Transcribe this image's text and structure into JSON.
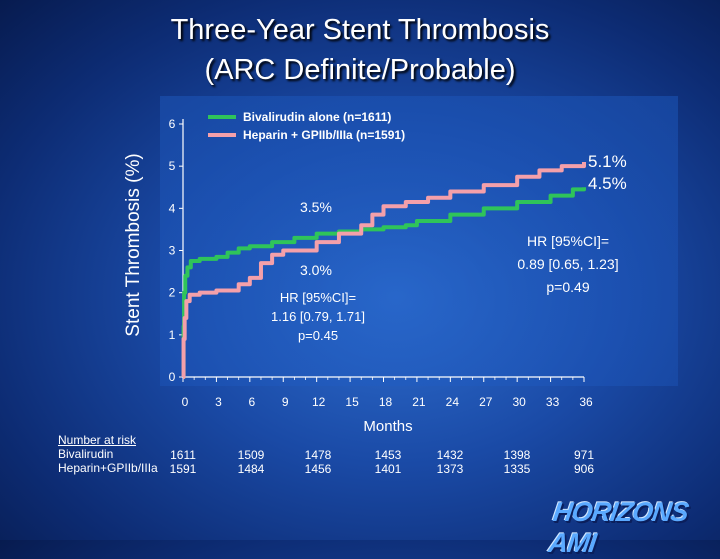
{
  "title_line1": "Three-Year Stent Thrombosis",
  "title_line2": "(ARC Definite/Probable)",
  "chart_data": {
    "type": "line",
    "ylabel": "Stent Thrombosis (%)",
    "xlabel": "Months",
    "xlim": [
      0,
      36
    ],
    "ylim": [
      0,
      6
    ],
    "x_ticks": [
      0,
      3,
      6,
      9,
      12,
      15,
      18,
      21,
      24,
      27,
      30,
      33,
      36
    ],
    "y_ticks": [
      0,
      1,
      2,
      3,
      4,
      5,
      6
    ],
    "grid": false,
    "legend": "top-center",
    "series": [
      {
        "name": "Bivalirudin alone (n=1611)",
        "color": "#2fc45a",
        "points": [
          [
            0,
            0
          ],
          [
            0.05,
            1.2
          ],
          [
            0.1,
            2.0
          ],
          [
            0.2,
            2.4
          ],
          [
            0.4,
            2.6
          ],
          [
            0.7,
            2.75
          ],
          [
            1.5,
            2.8
          ],
          [
            3,
            2.85
          ],
          [
            4,
            2.95
          ],
          [
            5,
            3.05
          ],
          [
            6,
            3.1
          ],
          [
            8,
            3.2
          ],
          [
            10,
            3.3
          ],
          [
            12,
            3.4
          ],
          [
            14,
            3.45
          ],
          [
            16,
            3.5
          ],
          [
            18,
            3.55
          ],
          [
            20,
            3.6
          ],
          [
            21,
            3.7
          ],
          [
            24,
            3.85
          ],
          [
            27,
            4.0
          ],
          [
            30,
            4.15
          ],
          [
            33,
            4.3
          ],
          [
            35,
            4.45
          ],
          [
            36,
            4.5
          ]
        ]
      },
      {
        "name": "Heparin + GPIIb/IIIa (n=1591)",
        "color": "#f4a0aa",
        "points": [
          [
            0,
            0
          ],
          [
            0.05,
            0.9
          ],
          [
            0.15,
            1.4
          ],
          [
            0.3,
            1.8
          ],
          [
            0.6,
            1.95
          ],
          [
            1.5,
            2.0
          ],
          [
            3,
            2.05
          ],
          [
            5,
            2.2
          ],
          [
            6,
            2.35
          ],
          [
            7,
            2.7
          ],
          [
            8,
            2.9
          ],
          [
            9,
            3.0
          ],
          [
            12,
            3.2
          ],
          [
            14,
            3.4
          ],
          [
            16,
            3.6
          ],
          [
            17,
            3.85
          ],
          [
            18,
            4.05
          ],
          [
            20,
            4.15
          ],
          [
            22,
            4.25
          ],
          [
            24,
            4.4
          ],
          [
            27,
            4.55
          ],
          [
            30,
            4.75
          ],
          [
            32,
            4.9
          ],
          [
            34,
            5.0
          ],
          [
            36,
            5.1
          ]
        ]
      }
    ],
    "annotations": [
      {
        "text": "5.1%",
        "color": "#ffffff"
      },
      {
        "text": "4.5%",
        "color": "#ffffff"
      },
      {
        "text": "3.5%",
        "color": "#ffffff"
      },
      {
        "text": "3.0%",
        "color": "#ffffff"
      },
      {
        "lines": [
          "HR [95%CI]=",
          "0.89 [0.65, 1.23]",
          "p=0.49"
        ],
        "color": "#ffffff"
      },
      {
        "lines": [
          "HR [95%CI]=",
          "1.16 [0.79, 1.71]",
          "p=0.45"
        ],
        "color": "#ffffff"
      }
    ]
  },
  "risk_table": {
    "title": "Number at risk",
    "rows": [
      {
        "label": "Bivalirudin",
        "values": [
          "1611",
          "1509",
          "1478",
          "1453",
          "1432",
          "1398",
          "971"
        ]
      },
      {
        "label": "Heparin+GPIIb/IIIa",
        "values": [
          "1591",
          "1484",
          "1456",
          "1401",
          "1373",
          "1335",
          "906"
        ]
      }
    ]
  },
  "logo_text": "HORIZONS AMI"
}
